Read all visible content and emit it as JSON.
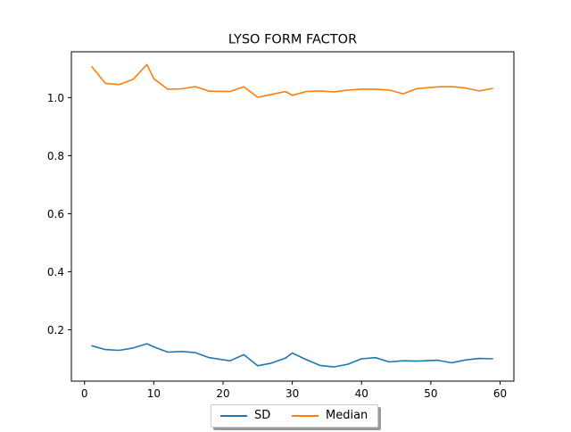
{
  "chart_data": {
    "type": "line",
    "title": "LYSO FORM FACTOR",
    "xlabel": "",
    "ylabel": "",
    "xlim": [
      -1.9,
      62
    ],
    "ylim": [
      0.023,
      1.158
    ],
    "xticks": [
      0,
      10,
      20,
      30,
      40,
      50,
      60
    ],
    "yticks": [
      0.2,
      0.4,
      0.6,
      0.8,
      1.0
    ],
    "xtick_labels": [
      "0",
      "10",
      "20",
      "30",
      "40",
      "50",
      "60"
    ],
    "ytick_labels": [
      "0.2",
      "0.4",
      "0.6",
      "0.8",
      "1.0"
    ],
    "grid": false,
    "legend_position": "bottom-center",
    "x": [
      1,
      3,
      5,
      7,
      9,
      10,
      12,
      14,
      16,
      18,
      21,
      23,
      25,
      27,
      29,
      30,
      32,
      34,
      36,
      38,
      40,
      42,
      44,
      46,
      48,
      51,
      53,
      55,
      57,
      59
    ],
    "series": [
      {
        "name": "SD",
        "color": "#1f77b4",
        "values": [
          0.145,
          0.132,
          0.129,
          0.137,
          0.152,
          0.141,
          0.123,
          0.125,
          0.121,
          0.104,
          0.093,
          0.114,
          0.076,
          0.085,
          0.102,
          0.12,
          0.097,
          0.077,
          0.072,
          0.081,
          0.1,
          0.104,
          0.089,
          0.093,
          0.092,
          0.095,
          0.086,
          0.096,
          0.101,
          0.1
        ]
      },
      {
        "name": "Median",
        "color": "#ff7f0e",
        "values": [
          1.108,
          1.049,
          1.045,
          1.063,
          1.114,
          1.065,
          1.029,
          1.03,
          1.038,
          1.022,
          1.021,
          1.037,
          1.001,
          1.011,
          1.021,
          1.008,
          1.021,
          1.023,
          1.02,
          1.026,
          1.029,
          1.029,
          1.026,
          1.013,
          1.031,
          1.037,
          1.038,
          1.033,
          1.023,
          1.032
        ]
      }
    ]
  }
}
